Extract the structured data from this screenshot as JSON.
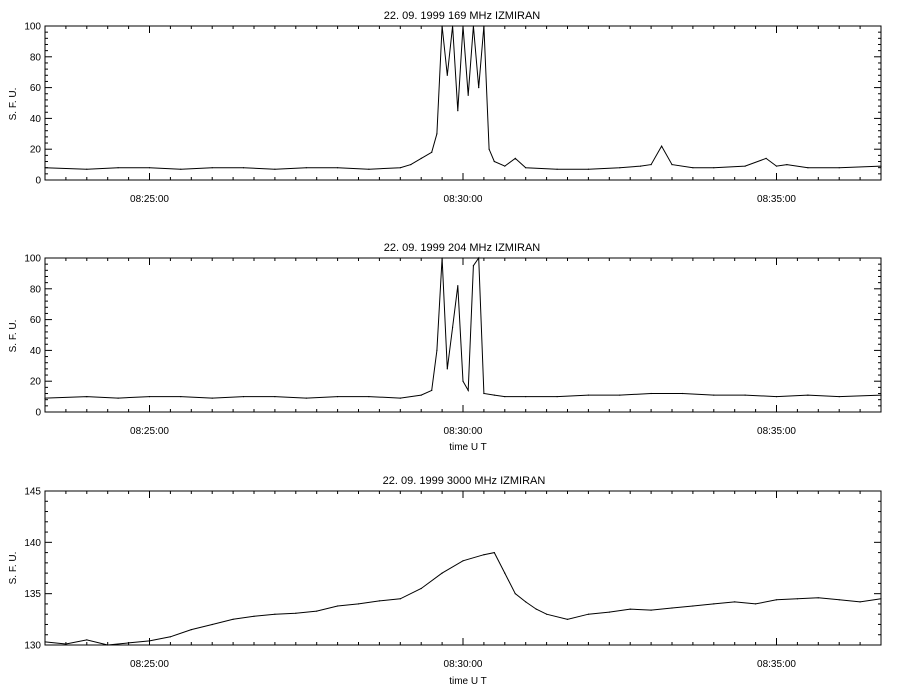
{
  "chart_data": [
    {
      "type": "line",
      "title": "22. 09. 1999    169 MHz    IZMIRAN",
      "ylabel": "S. F. U.",
      "xlabel": "",
      "xlim": [
        "08:23:20",
        "08:36:40"
      ],
      "ylim": [
        0,
        100
      ],
      "yticks": [
        0,
        20,
        40,
        60,
        80,
        100
      ],
      "xticks": [
        "08:25:00",
        "08:30:00",
        "08:35:00"
      ],
      "series": [
        {
          "x": [
            "08:23:20",
            "08:24:00",
            "08:24:30",
            "08:25:00",
            "08:25:30",
            "08:26:00",
            "08:26:30",
            "08:27:00",
            "08:27:30",
            "08:28:00",
            "08:28:30",
            "08:29:00",
            "08:29:10",
            "08:29:20",
            "08:29:30",
            "08:29:35",
            "08:29:40",
            "08:29:45",
            "08:29:50",
            "08:29:55",
            "08:30:00",
            "08:30:05",
            "08:30:10",
            "08:30:15",
            "08:30:20",
            "08:30:25",
            "08:30:30",
            "08:30:40",
            "08:30:50",
            "08:31:00",
            "08:31:30",
            "08:32:00",
            "08:32:30",
            "08:32:50",
            "08:33:00",
            "08:33:10",
            "08:33:20",
            "08:33:40",
            "08:34:00",
            "08:34:30",
            "08:34:50",
            "08:35:00",
            "08:35:10",
            "08:35:30",
            "08:36:00",
            "08:36:40"
          ],
          "values": [
            8,
            7,
            8,
            8,
            7,
            8,
            8,
            7,
            8,
            8,
            7,
            8,
            10,
            14,
            18,
            30,
            100,
            68,
            100,
            45,
            100,
            55,
            100,
            60,
            100,
            20,
            12,
            9,
            14,
            8,
            7,
            7,
            8,
            9,
            10,
            22,
            10,
            8,
            8,
            9,
            14,
            9,
            10,
            8,
            8,
            9
          ]
        }
      ]
    },
    {
      "type": "line",
      "title": "22. 09. 1999    204 MHz    IZMIRAN",
      "ylabel": "S. F. U.",
      "xlabel": "time  U T",
      "xlim": [
        "08:23:20",
        "08:36:40"
      ],
      "ylim": [
        0,
        100
      ],
      "yticks": [
        0,
        20,
        40,
        60,
        80,
        100
      ],
      "xticks": [
        "08:25:00",
        "08:30:00",
        "08:35:00"
      ],
      "series": [
        {
          "x": [
            "08:23:20",
            "08:24:00",
            "08:24:30",
            "08:25:00",
            "08:25:30",
            "08:26:00",
            "08:26:30",
            "08:27:00",
            "08:27:30",
            "08:28:00",
            "08:28:30",
            "08:29:00",
            "08:29:20",
            "08:29:30",
            "08:29:35",
            "08:29:40",
            "08:29:45",
            "08:29:50",
            "08:29:55",
            "08:30:00",
            "08:30:05",
            "08:30:10",
            "08:30:15",
            "08:30:20",
            "08:30:30",
            "08:30:40",
            "08:31:00",
            "08:31:30",
            "08:32:00",
            "08:32:30",
            "08:33:00",
            "08:33:30",
            "08:34:00",
            "08:34:30",
            "08:35:00",
            "08:35:30",
            "08:36:00",
            "08:36:40"
          ],
          "values": [
            9,
            10,
            9,
            10,
            10,
            9,
            10,
            10,
            9,
            10,
            10,
            9,
            11,
            14,
            40,
            100,
            28,
            55,
            82,
            20,
            14,
            95,
            100,
            12,
            11,
            10,
            10,
            10,
            11,
            11,
            12,
            12,
            11,
            11,
            10,
            11,
            10,
            11
          ]
        }
      ]
    },
    {
      "type": "line",
      "title": "22. 09. 1999    3000 MHz    IZMIRAN",
      "ylabel": "S. F. U.",
      "xlabel": "time  U T",
      "xlim": [
        "08:23:20",
        "08:36:40"
      ],
      "ylim": [
        130,
        145
      ],
      "yticks": [
        130,
        135,
        140,
        145
      ],
      "xticks": [
        "08:25:00",
        "08:30:00",
        "08:35:00"
      ],
      "series": [
        {
          "x": [
            "08:23:20",
            "08:23:40",
            "08:24:00",
            "08:24:20",
            "08:24:40",
            "08:25:00",
            "08:25:20",
            "08:25:40",
            "08:26:00",
            "08:26:20",
            "08:26:40",
            "08:27:00",
            "08:27:20",
            "08:27:40",
            "08:28:00",
            "08:28:20",
            "08:28:40",
            "08:29:00",
            "08:29:20",
            "08:29:40",
            "08:30:00",
            "08:30:20",
            "08:30:30",
            "08:30:40",
            "08:30:50",
            "08:31:00",
            "08:31:10",
            "08:31:20",
            "08:31:40",
            "08:32:00",
            "08:32:20",
            "08:32:40",
            "08:33:00",
            "08:33:20",
            "08:33:40",
            "08:34:00",
            "08:34:20",
            "08:34:40",
            "08:35:00",
            "08:35:20",
            "08:35:40",
            "08:36:00",
            "08:36:20",
            "08:36:40"
          ],
          "values": [
            130.3,
            130.1,
            130.5,
            130.0,
            130.2,
            130.4,
            130.8,
            131.5,
            132.0,
            132.5,
            132.8,
            133.0,
            133.1,
            133.3,
            133.8,
            134.0,
            134.3,
            134.5,
            135.5,
            137.0,
            138.2,
            138.8,
            139.0,
            137.0,
            135.0,
            134.2,
            133.5,
            133.0,
            132.5,
            133.0,
            133.2,
            133.5,
            133.4,
            133.6,
            133.8,
            134.0,
            134.2,
            134.0,
            134.4,
            134.5,
            134.6,
            134.4,
            134.2,
            134.5
          ]
        }
      ]
    }
  ]
}
